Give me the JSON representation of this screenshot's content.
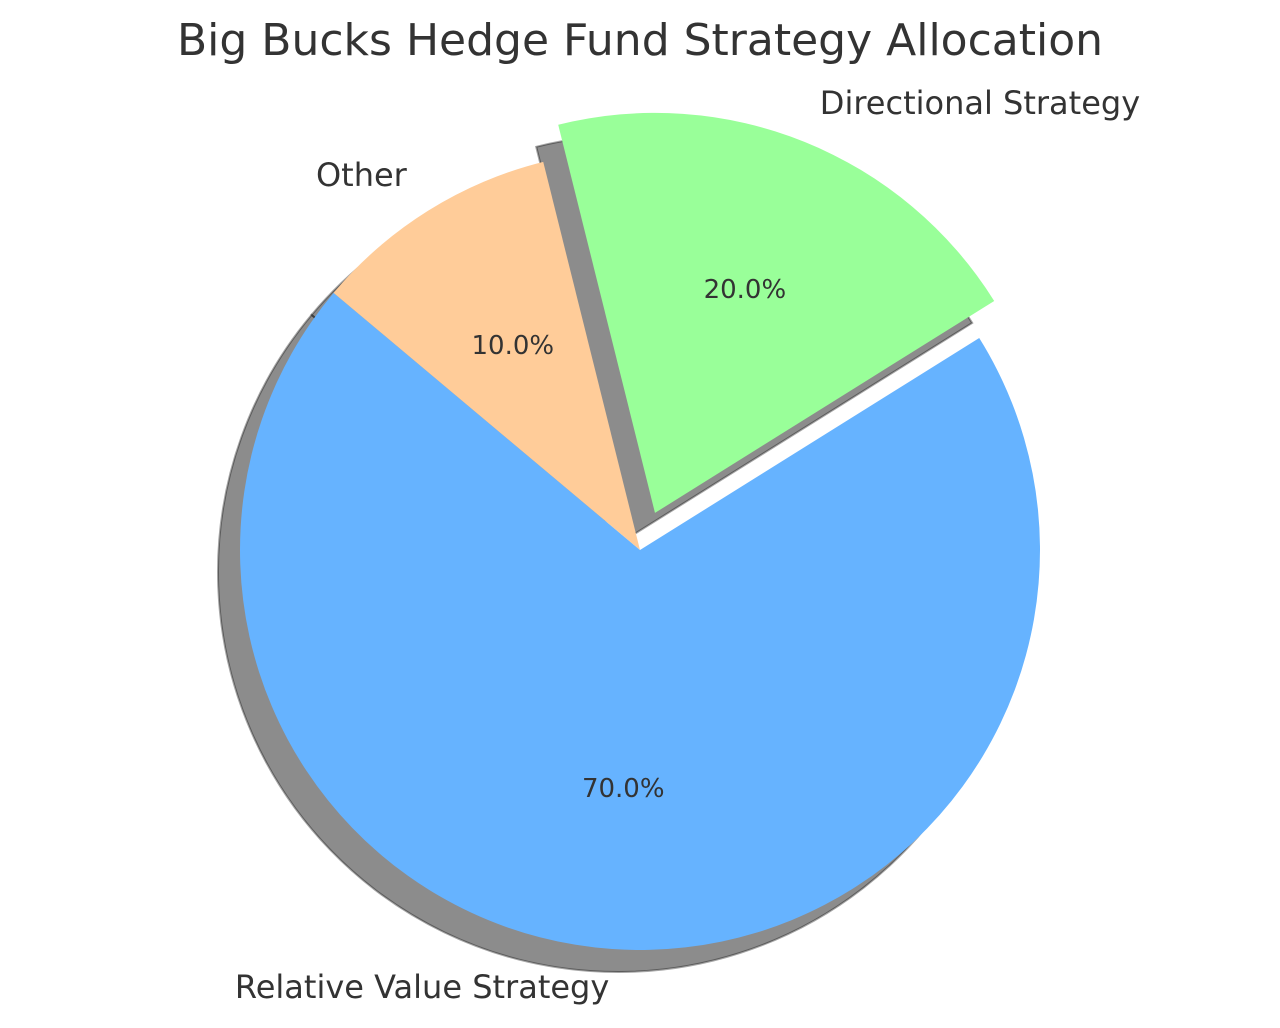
{
  "chart_data": {
    "type": "pie",
    "title": "Big Bucks Hedge Fund Strategy Allocation",
    "categories": [
      "Relative Value Strategy",
      "Directional Strategy",
      "Other"
    ],
    "values": [
      70,
      20,
      10
    ],
    "percent_labels": [
      "70.0%",
      "20.0%",
      "10.0%"
    ],
    "colors": [
      "#66b3ff",
      "#99ff99",
      "#ffcc99"
    ],
    "exploded": [
      false,
      true,
      false
    ],
    "shadow": true,
    "start_angle_deg": 140,
    "direction": "counterclockwise"
  }
}
